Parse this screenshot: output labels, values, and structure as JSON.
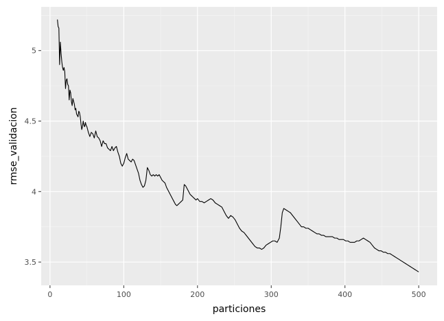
{
  "chart_data": {
    "type": "line",
    "title": "",
    "xlabel": "particiones",
    "ylabel": "rmse_validacion",
    "xlim": [
      -12,
      525
    ],
    "ylim": [
      3.335,
      5.31
    ],
    "grid": true,
    "legend": "none",
    "x_ticks": [
      0,
      100,
      200,
      300,
      400,
      500
    ],
    "x_tick_labels": [
      "0",
      "100",
      "200",
      "300",
      "400",
      "500"
    ],
    "y_ticks": [
      3.5,
      4,
      4.5,
      5
    ],
    "y_tick_labels": [
      "3.5",
      "4",
      "4.5",
      "5"
    ],
    "series": [
      {
        "color": "#000000",
        "points": [
          [
            10,
            5.22
          ],
          [
            11,
            5.17
          ],
          [
            12,
            5.16
          ],
          [
            13,
            4.9
          ],
          [
            14,
            5.06
          ],
          [
            15,
            4.98
          ],
          [
            16,
            4.92
          ],
          [
            17,
            4.88
          ],
          [
            18,
            4.86
          ],
          [
            19,
            4.88
          ],
          [
            20,
            4.85
          ],
          [
            21,
            4.73
          ],
          [
            22,
            4.79
          ],
          [
            23,
            4.8
          ],
          [
            24,
            4.76
          ],
          [
            25,
            4.75
          ],
          [
            26,
            4.65
          ],
          [
            27,
            4.72
          ],
          [
            28,
            4.7
          ],
          [
            29,
            4.64
          ],
          [
            30,
            4.61
          ],
          [
            31,
            4.66
          ],
          [
            32,
            4.64
          ],
          [
            33,
            4.62
          ],
          [
            34,
            4.58
          ],
          [
            35,
            4.59
          ],
          [
            36,
            4.55
          ],
          [
            37,
            4.54
          ],
          [
            38,
            4.53
          ],
          [
            39,
            4.57
          ],
          [
            40,
            4.56
          ],
          [
            41,
            4.53
          ],
          [
            42,
            4.48
          ],
          [
            43,
            4.44
          ],
          [
            44,
            4.46
          ],
          [
            45,
            4.5
          ],
          [
            46,
            4.47
          ],
          [
            47,
            4.46
          ],
          [
            48,
            4.49
          ],
          [
            49,
            4.47
          ],
          [
            50,
            4.46
          ],
          [
            52,
            4.42
          ],
          [
            54,
            4.39
          ],
          [
            56,
            4.42
          ],
          [
            58,
            4.41
          ],
          [
            60,
            4.38
          ],
          [
            62,
            4.43
          ],
          [
            64,
            4.39
          ],
          [
            66,
            4.38
          ],
          [
            68,
            4.36
          ],
          [
            70,
            4.32
          ],
          [
            72,
            4.36
          ],
          [
            74,
            4.34
          ],
          [
            76,
            4.34
          ],
          [
            78,
            4.31
          ],
          [
            80,
            4.3
          ],
          [
            82,
            4.29
          ],
          [
            84,
            4.32
          ],
          [
            86,
            4.29
          ],
          [
            88,
            4.31
          ],
          [
            90,
            4.32
          ],
          [
            92,
            4.28
          ],
          [
            94,
            4.25
          ],
          [
            96,
            4.2
          ],
          [
            98,
            4.18
          ],
          [
            100,
            4.2
          ],
          [
            102,
            4.24
          ],
          [
            104,
            4.27
          ],
          [
            106,
            4.23
          ],
          [
            108,
            4.22
          ],
          [
            110,
            4.21
          ],
          [
            112,
            4.23
          ],
          [
            114,
            4.22
          ],
          [
            116,
            4.19
          ],
          [
            118,
            4.16
          ],
          [
            120,
            4.13
          ],
          [
            122,
            4.08
          ],
          [
            124,
            4.05
          ],
          [
            126,
            4.03
          ],
          [
            128,
            4.04
          ],
          [
            130,
            4.08
          ],
          [
            132,
            4.17
          ],
          [
            134,
            4.15
          ],
          [
            136,
            4.12
          ],
          [
            138,
            4.11
          ],
          [
            140,
            4.12
          ],
          [
            142,
            4.11
          ],
          [
            144,
            4.12
          ],
          [
            146,
            4.11
          ],
          [
            148,
            4.12
          ],
          [
            150,
            4.1
          ],
          [
            152,
            4.08
          ],
          [
            154,
            4.07
          ],
          [
            156,
            4.06
          ],
          [
            158,
            4.03
          ],
          [
            160,
            4.01
          ],
          [
            162,
            3.99
          ],
          [
            164,
            3.97
          ],
          [
            166,
            3.95
          ],
          [
            168,
            3.93
          ],
          [
            170,
            3.91
          ],
          [
            172,
            3.9
          ],
          [
            174,
            3.91
          ],
          [
            176,
            3.92
          ],
          [
            178,
            3.93
          ],
          [
            180,
            3.94
          ],
          [
            182,
            4.05
          ],
          [
            184,
            4.04
          ],
          [
            186,
            4.02
          ],
          [
            188,
            4.0
          ],
          [
            190,
            3.98
          ],
          [
            192,
            3.97
          ],
          [
            194,
            3.96
          ],
          [
            196,
            3.95
          ],
          [
            198,
            3.94
          ],
          [
            200,
            3.95
          ],
          [
            203,
            3.93
          ],
          [
            206,
            3.93
          ],
          [
            209,
            3.92
          ],
          [
            212,
            3.93
          ],
          [
            215,
            3.94
          ],
          [
            218,
            3.95
          ],
          [
            221,
            3.94
          ],
          [
            224,
            3.92
          ],
          [
            227,
            3.91
          ],
          [
            230,
            3.9
          ],
          [
            233,
            3.89
          ],
          [
            236,
            3.86
          ],
          [
            239,
            3.83
          ],
          [
            242,
            3.81
          ],
          [
            245,
            3.83
          ],
          [
            248,
            3.82
          ],
          [
            251,
            3.8
          ],
          [
            254,
            3.77
          ],
          [
            257,
            3.74
          ],
          [
            260,
            3.72
          ],
          [
            263,
            3.71
          ],
          [
            266,
            3.69
          ],
          [
            269,
            3.67
          ],
          [
            272,
            3.65
          ],
          [
            275,
            3.63
          ],
          [
            278,
            3.61
          ],
          [
            281,
            3.6
          ],
          [
            284,
            3.6
          ],
          [
            287,
            3.59
          ],
          [
            290,
            3.6
          ],
          [
            293,
            3.62
          ],
          [
            296,
            3.63
          ],
          [
            299,
            3.64
          ],
          [
            302,
            3.65
          ],
          [
            305,
            3.65
          ],
          [
            308,
            3.64
          ],
          [
            311,
            3.67
          ],
          [
            313,
            3.75
          ],
          [
            315,
            3.85
          ],
          [
            317,
            3.88
          ],
          [
            320,
            3.87
          ],
          [
            323,
            3.86
          ],
          [
            326,
            3.85
          ],
          [
            329,
            3.83
          ],
          [
            332,
            3.81
          ],
          [
            335,
            3.79
          ],
          [
            338,
            3.77
          ],
          [
            341,
            3.75
          ],
          [
            344,
            3.75
          ],
          [
            347,
            3.74
          ],
          [
            350,
            3.74
          ],
          [
            353,
            3.73
          ],
          [
            356,
            3.72
          ],
          [
            359,
            3.71
          ],
          [
            362,
            3.7
          ],
          [
            365,
            3.7
          ],
          [
            368,
            3.69
          ],
          [
            371,
            3.69
          ],
          [
            374,
            3.68
          ],
          [
            377,
            3.68
          ],
          [
            380,
            3.68
          ],
          [
            383,
            3.68
          ],
          [
            386,
            3.67
          ],
          [
            389,
            3.67
          ],
          [
            392,
            3.66
          ],
          [
            395,
            3.66
          ],
          [
            398,
            3.66
          ],
          [
            401,
            3.65
          ],
          [
            404,
            3.65
          ],
          [
            407,
            3.64
          ],
          [
            410,
            3.64
          ],
          [
            413,
            3.64
          ],
          [
            416,
            3.65
          ],
          [
            419,
            3.65
          ],
          [
            422,
            3.66
          ],
          [
            425,
            3.67
          ],
          [
            428,
            3.66
          ],
          [
            431,
            3.65
          ],
          [
            434,
            3.64
          ],
          [
            437,
            3.62
          ],
          [
            440,
            3.6
          ],
          [
            443,
            3.59
          ],
          [
            446,
            3.58
          ],
          [
            449,
            3.58
          ],
          [
            452,
            3.57
          ],
          [
            455,
            3.57
          ],
          [
            458,
            3.56
          ],
          [
            461,
            3.56
          ],
          [
            464,
            3.55
          ],
          [
            467,
            3.54
          ],
          [
            470,
            3.53
          ],
          [
            473,
            3.52
          ],
          [
            476,
            3.51
          ],
          [
            479,
            3.5
          ],
          [
            482,
            3.49
          ],
          [
            485,
            3.48
          ],
          [
            488,
            3.47
          ],
          [
            491,
            3.46
          ],
          [
            494,
            3.45
          ],
          [
            497,
            3.44
          ],
          [
            500,
            3.43
          ]
        ]
      }
    ]
  }
}
